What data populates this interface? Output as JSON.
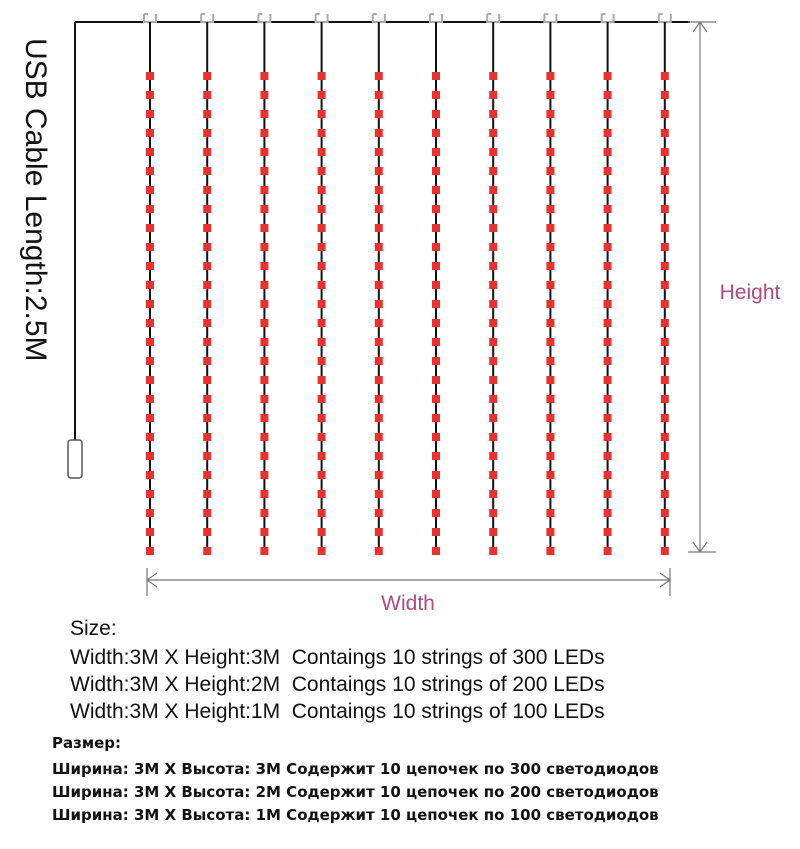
{
  "labels": {
    "cable": "USB Cable Length:2.5M",
    "height": "Height",
    "width": "Width"
  },
  "size": {
    "title": "Size:",
    "lines": [
      "Width:3M X Height:3M  Contaings 10 strings of 300 LEDs",
      "Width:3M X Height:2M  Contaings 10 strings of 200 LEDs",
      "Width:3M X Height:1M  Contaings 10 strings of 100 LEDs"
    ]
  },
  "size_ru": {
    "title": "Размер:",
    "lines": [
      "Ширина: 3M X Высота: 3M Содержит 10 цепочек по 300 светодиодов",
      "Ширина: 3M X Высота: 2M Содержит 10 цепочек по 200 светодиодов",
      "Ширина: 3M X Высота: 1M Содержит 10 цепочек по 100 светодиодов"
    ]
  }
}
